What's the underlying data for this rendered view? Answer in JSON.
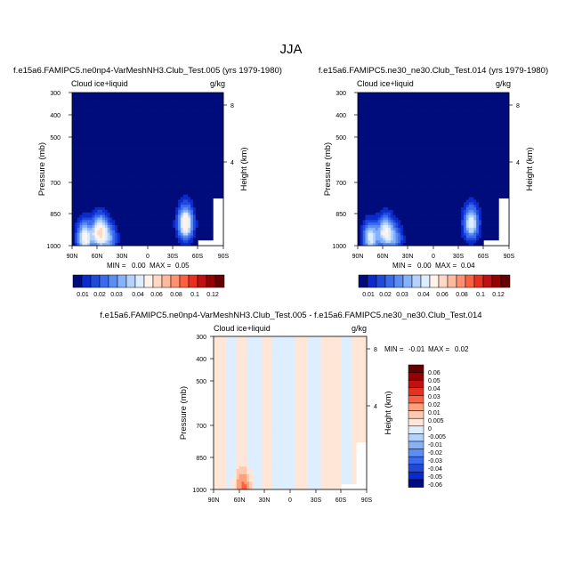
{
  "figure": {
    "title": "JJA"
  },
  "chart_data": [
    {
      "type": "heatmap",
      "id": "p1",
      "title": "f.e15a6.FAMIPC5.ne0np4-VarMeshNH3.Club_Test.005 (yrs 1979-1980)",
      "variable": "Cloud ice+liquid",
      "units": "g/kg",
      "xlabel": "",
      "ylabel": "Pressure (mb)",
      "y2label": "Height (km)",
      "x_ticks": [
        "90N",
        "60N",
        "30N",
        "0",
        "30S",
        "60S",
        "90S"
      ],
      "y_ticks": [
        "300",
        "400",
        "500",
        "700",
        "850",
        "1000"
      ],
      "y2_ticks": [
        "8",
        "4"
      ],
      "xlim": [
        90,
        -90
      ],
      "ylim_mb": [
        1000,
        300
      ],
      "background_value": 0.0,
      "stats": {
        "min_label": "MIN =",
        "min": "0.00",
        "max_label": "MAX =",
        "max": "0.05"
      },
      "maxima": [
        {
          "lat": 57,
          "p": 900,
          "peak": 0.05
        },
        {
          "lat": 75,
          "p": 940,
          "peak": 0.044
        },
        {
          "lat": -45,
          "p": 840,
          "peak": 0.05
        },
        {
          "lat": 45,
          "p": 950,
          "peak": 0.022
        }
      ]
    },
    {
      "type": "heatmap",
      "id": "p2",
      "title": "f.e15a6.FAMIPC5.ne30_ne30.Club_Test.014 (yrs 1979-1980)",
      "variable": "Cloud ice+liquid",
      "units": "g/kg",
      "xlabel": "",
      "ylabel": "Pressure (mb)",
      "y2label": "Height (km)",
      "x_ticks": [
        "90N",
        "60N",
        "30N",
        "0",
        "30S",
        "60S",
        "90S"
      ],
      "y_ticks": [
        "300",
        "400",
        "500",
        "700",
        "850",
        "1000"
      ],
      "y2_ticks": [
        "8",
        "4"
      ],
      "xlim": [
        90,
        -90
      ],
      "ylim_mb": [
        1000,
        300
      ],
      "background_value": 0.0,
      "stats": {
        "min_label": "MIN =",
        "min": "0.00",
        "max_label": "MAX =",
        "max": "0.04"
      },
      "maxima": [
        {
          "lat": 57,
          "p": 900,
          "peak": 0.04
        },
        {
          "lat": 75,
          "p": 940,
          "peak": 0.038
        },
        {
          "lat": -45,
          "p": 840,
          "peak": 0.04
        },
        {
          "lat": 45,
          "p": 950,
          "peak": 0.02
        }
      ]
    },
    {
      "type": "heatmap",
      "id": "diff",
      "title": "f.e15a6.FAMIPC5.ne0np4-VarMeshNH3.Club_Test.005 - f.e15a6.FAMIPC5.ne30_ne30.Club_Test.014",
      "variable": "Cloud ice+liquid",
      "units": "g/kg",
      "xlabel": "",
      "ylabel": "Pressure (mb)",
      "y2label": "Height (km)",
      "x_ticks": [
        "90N",
        "60N",
        "30N",
        "0",
        "30S",
        "60S",
        "90S"
      ],
      "y_ticks": [
        "300",
        "400",
        "500",
        "700",
        "850",
        "1000"
      ],
      "y2_ticks": [
        "8",
        "4"
      ],
      "xlim": [
        90,
        -90
      ],
      "ylim_mb": [
        1000,
        300
      ],
      "stats": {
        "min_label": "MIN =",
        "min": "-0.01",
        "max_label": "MAX =",
        "max": "0.02"
      },
      "bands": [
        {
          "lat_from": 90,
          "lat_to": 75,
          "value": 0.002
        },
        {
          "lat_from": 75,
          "lat_to": 62,
          "value": -0.002
        },
        {
          "lat_from": 62,
          "lat_to": 52,
          "value": 0.002
        },
        {
          "lat_from": 52,
          "lat_to": 34,
          "value": -0.002
        },
        {
          "lat_from": 34,
          "lat_to": 22,
          "value": 0.002
        },
        {
          "lat_from": 22,
          "lat_to": -5,
          "value": -0.002
        },
        {
          "lat_from": -5,
          "lat_to": -20,
          "value": 0.002
        },
        {
          "lat_from": -20,
          "lat_to": -35,
          "value": -0.002
        },
        {
          "lat_from": -35,
          "lat_to": -60,
          "value": 0.002
        },
        {
          "lat_from": -60,
          "lat_to": -72,
          "value": -0.002
        },
        {
          "lat_from": -72,
          "lat_to": -90,
          "value": 0.002
        }
      ],
      "maxima": [
        {
          "lat": 55,
          "p": 985,
          "peak": 0.02
        }
      ]
    }
  ],
  "colorbar_main": {
    "labels": [
      "0.01",
      "0.02",
      "0.03",
      "0.04",
      "0.06",
      "0.08",
      "0.1",
      "0.12"
    ],
    "levels": [
      0.005,
      0.01,
      0.015,
      0.02,
      0.025,
      0.03,
      0.035,
      0.04,
      0.05,
      0.06,
      0.07,
      0.08,
      0.09,
      0.1,
      0.11,
      0.12
    ],
    "colors": [
      "#000c7b",
      "#0a2acd",
      "#1f4ad7",
      "#3b6aed",
      "#5c8df3",
      "#87b2fa",
      "#b4d2fc",
      "#dceeff",
      "#fff3ea",
      "#ffd9c4",
      "#ffb99c",
      "#ff9070",
      "#fb6040",
      "#e73020",
      "#c01010",
      "#950000",
      "#660000"
    ]
  },
  "colorbar_diff": {
    "labels": [
      "0.06",
      "0.05",
      "0.04",
      "0.03",
      "0.02",
      "0.01",
      "0.005",
      "0",
      "-0.005",
      "-0.01",
      "-0.02",
      "-0.03",
      "-0.04",
      "-0.05",
      "-0.06"
    ],
    "levels": [
      -0.06,
      -0.05,
      -0.04,
      -0.03,
      -0.02,
      -0.01,
      -0.005,
      0,
      0.005,
      0.01,
      0.02,
      0.03,
      0.04,
      0.05,
      0.06
    ],
    "colors": [
      "#000c7b",
      "#0a2acd",
      "#1f4ad7",
      "#3b6aed",
      "#5c8df3",
      "#87b2fa",
      "#b4d2fc",
      "#dceeff",
      "#ffe6d6",
      "#ffcbb0",
      "#ffa07c",
      "#fb6040",
      "#e73020",
      "#c01010",
      "#950000",
      "#660000"
    ]
  }
}
